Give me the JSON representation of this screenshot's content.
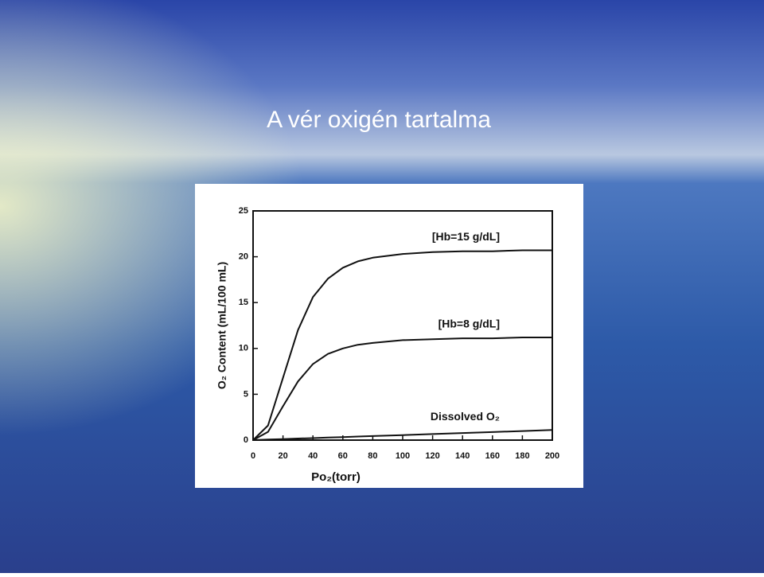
{
  "chart_data": {
    "type": "line",
    "title": "A vér oxigén tartalma",
    "x_label": "Po₂(torr)",
    "y_label": "O₂ Content (mL/100 mL)",
    "x": [
      0,
      10,
      20,
      30,
      40,
      50,
      60,
      70,
      80,
      100,
      120,
      140,
      160,
      180,
      200
    ],
    "series": [
      {
        "name": "[Hb=15 g/dL]",
        "color": "#111111",
        "values": [
          0,
          1.6,
          6.8,
          12.0,
          15.6,
          17.6,
          18.8,
          19.5,
          19.9,
          20.3,
          20.5,
          20.6,
          20.6,
          20.7,
          20.7
        ]
      },
      {
        "name": "[Hb=8 g/dL]",
        "color": "#111111",
        "values": [
          0,
          0.9,
          3.7,
          6.4,
          8.3,
          9.4,
          10.0,
          10.4,
          10.6,
          10.9,
          11.0,
          11.1,
          11.1,
          11.2,
          11.2
        ]
      },
      {
        "name": "Dissolved O₂",
        "color": "#111111",
        "values": [
          0,
          0.06,
          0.11,
          0.17,
          0.22,
          0.28,
          0.33,
          0.39,
          0.44,
          0.55,
          0.66,
          0.77,
          0.88,
          0.99,
          1.1
        ]
      }
    ],
    "xlim": [
      0,
      200
    ],
    "xticks": [
      0,
      20,
      40,
      60,
      80,
      100,
      120,
      140,
      160,
      180,
      200
    ],
    "ylim": [
      0,
      25
    ],
    "yticks": [
      0,
      5,
      10,
      15,
      20,
      25
    ]
  }
}
